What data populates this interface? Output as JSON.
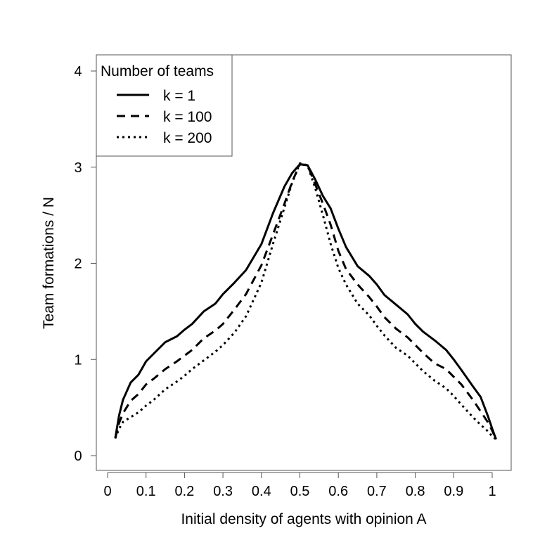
{
  "chart_data": {
    "type": "line",
    "xlabel": "Initial density of agents with opinion A",
    "ylabel": "Team formations / N",
    "xlim": [
      0,
      1
    ],
    "ylim": [
      0,
      4
    ],
    "x_ticks": [
      0,
      0.1,
      0.2,
      0.3,
      0.4,
      0.5,
      0.6,
      0.7,
      0.8,
      0.9,
      1
    ],
    "x_tick_labels": [
      "0",
      "0.1",
      "0.2",
      "0.3",
      "0.4",
      "0.5",
      "0.6",
      "0.7",
      "0.8",
      "0.9",
      "1"
    ],
    "y_ticks": [
      0,
      1,
      2,
      3,
      4
    ],
    "y_tick_labels": [
      "0",
      "1",
      "2",
      "3",
      "4"
    ],
    "grid": false,
    "legend": {
      "title": "Number of teams",
      "position": "top-left",
      "entries": [
        "k = 1",
        "k = 100",
        "k = 200"
      ]
    },
    "series": [
      {
        "name": "k = 1",
        "line_style": "solid",
        "x": [
          0.02,
          0.03,
          0.04,
          0.06,
          0.08,
          0.1,
          0.12,
          0.15,
          0.18,
          0.2,
          0.22,
          0.25,
          0.28,
          0.3,
          0.33,
          0.36,
          0.4,
          0.43,
          0.46,
          0.48,
          0.5,
          0.52,
          0.54,
          0.56,
          0.58,
          0.6,
          0.62,
          0.65,
          0.68,
          0.7,
          0.72,
          0.75,
          0.78,
          0.8,
          0.82,
          0.85,
          0.88,
          0.9,
          0.92,
          0.95,
          0.97,
          0.99,
          1.0,
          1.01
        ],
        "y": [
          0.18,
          0.42,
          0.58,
          0.76,
          0.84,
          0.98,
          1.06,
          1.18,
          1.24,
          1.31,
          1.37,
          1.5,
          1.58,
          1.68,
          1.8,
          1.93,
          2.2,
          2.52,
          2.8,
          2.94,
          3.03,
          3.02,
          2.87,
          2.7,
          2.57,
          2.36,
          2.17,
          1.97,
          1.87,
          1.78,
          1.67,
          1.57,
          1.47,
          1.37,
          1.29,
          1.2,
          1.1,
          1.0,
          0.89,
          0.72,
          0.61,
          0.4,
          0.28,
          0.17
        ]
      },
      {
        "name": "k = 100",
        "line_style": "dashed",
        "x": [
          0.02,
          0.03,
          0.04,
          0.06,
          0.08,
          0.1,
          0.12,
          0.15,
          0.18,
          0.2,
          0.22,
          0.25,
          0.28,
          0.3,
          0.33,
          0.36,
          0.4,
          0.43,
          0.46,
          0.48,
          0.5,
          0.52,
          0.54,
          0.56,
          0.58,
          0.6,
          0.62,
          0.65,
          0.68,
          0.7,
          0.72,
          0.75,
          0.78,
          0.8,
          0.82,
          0.85,
          0.88,
          0.9,
          0.92,
          0.95,
          0.97,
          0.99,
          1.0,
          1.01
        ],
        "y": [
          0.18,
          0.34,
          0.44,
          0.57,
          0.64,
          0.74,
          0.8,
          0.9,
          0.98,
          1.04,
          1.1,
          1.22,
          1.3,
          1.37,
          1.52,
          1.68,
          1.98,
          2.3,
          2.62,
          2.85,
          3.03,
          3.02,
          2.82,
          2.62,
          2.4,
          2.13,
          1.94,
          1.78,
          1.65,
          1.55,
          1.44,
          1.32,
          1.23,
          1.15,
          1.07,
          0.96,
          0.9,
          0.82,
          0.74,
          0.58,
          0.46,
          0.34,
          0.26,
          0.17
        ]
      },
      {
        "name": "k = 200",
        "line_style": "dotted",
        "x": [
          0.02,
          0.03,
          0.04,
          0.06,
          0.08,
          0.1,
          0.12,
          0.15,
          0.18,
          0.2,
          0.22,
          0.25,
          0.28,
          0.3,
          0.33,
          0.36,
          0.4,
          0.43,
          0.46,
          0.48,
          0.5,
          0.52,
          0.54,
          0.56,
          0.58,
          0.6,
          0.62,
          0.65,
          0.68,
          0.7,
          0.72,
          0.75,
          0.78,
          0.8,
          0.82,
          0.85,
          0.88,
          0.9,
          0.92,
          0.95,
          0.97,
          0.99,
          1.0,
          1.01
        ],
        "y": [
          0.18,
          0.28,
          0.35,
          0.4,
          0.45,
          0.52,
          0.58,
          0.69,
          0.77,
          0.83,
          0.9,
          0.99,
          1.08,
          1.15,
          1.28,
          1.45,
          1.8,
          2.2,
          2.58,
          2.84,
          3.04,
          3.02,
          2.78,
          2.5,
          2.2,
          1.95,
          1.78,
          1.58,
          1.46,
          1.35,
          1.25,
          1.12,
          1.04,
          0.96,
          0.88,
          0.78,
          0.7,
          0.62,
          0.53,
          0.4,
          0.32,
          0.25,
          0.2,
          0.17
        ]
      }
    ]
  }
}
